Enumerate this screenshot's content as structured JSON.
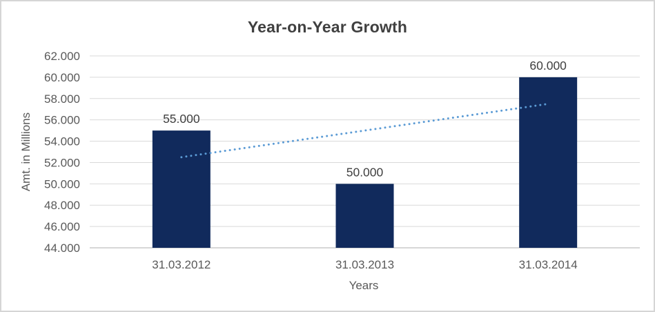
{
  "chart_data": {
    "type": "bar",
    "title": "Year-on-Year Growth",
    "xlabel": "Years",
    "ylabel": "Amt. in Millions",
    "categories": [
      "31.03.2012",
      "31.03.2013",
      "31.03.2014"
    ],
    "values": [
      55000,
      50000,
      60000
    ],
    "data_labels": [
      "55.000",
      "50.000",
      "60.000"
    ],
    "y_tick_values": [
      44000,
      46000,
      48000,
      50000,
      52000,
      54000,
      56000,
      58000,
      60000,
      62000
    ],
    "y_tick_labels": [
      "44.000",
      "46.000",
      "48.000",
      "50.000",
      "52.000",
      "54.000",
      "56.000",
      "58.000",
      "60.000",
      "62.000"
    ],
    "ylim": [
      44000,
      62000
    ],
    "grid": true,
    "legend": "none",
    "trendline": {
      "style": "dotted",
      "type": "linear",
      "start_value": 52500,
      "end_value": 57500
    },
    "colors": {
      "bar": "#112A5C",
      "trendline": "#5B9BD5",
      "gridline": "#D9D9D9",
      "axis_line": "#BFBFBF",
      "title_text": "#404040",
      "data_label_text": "#404040",
      "tick_label_text": "#595959"
    }
  }
}
